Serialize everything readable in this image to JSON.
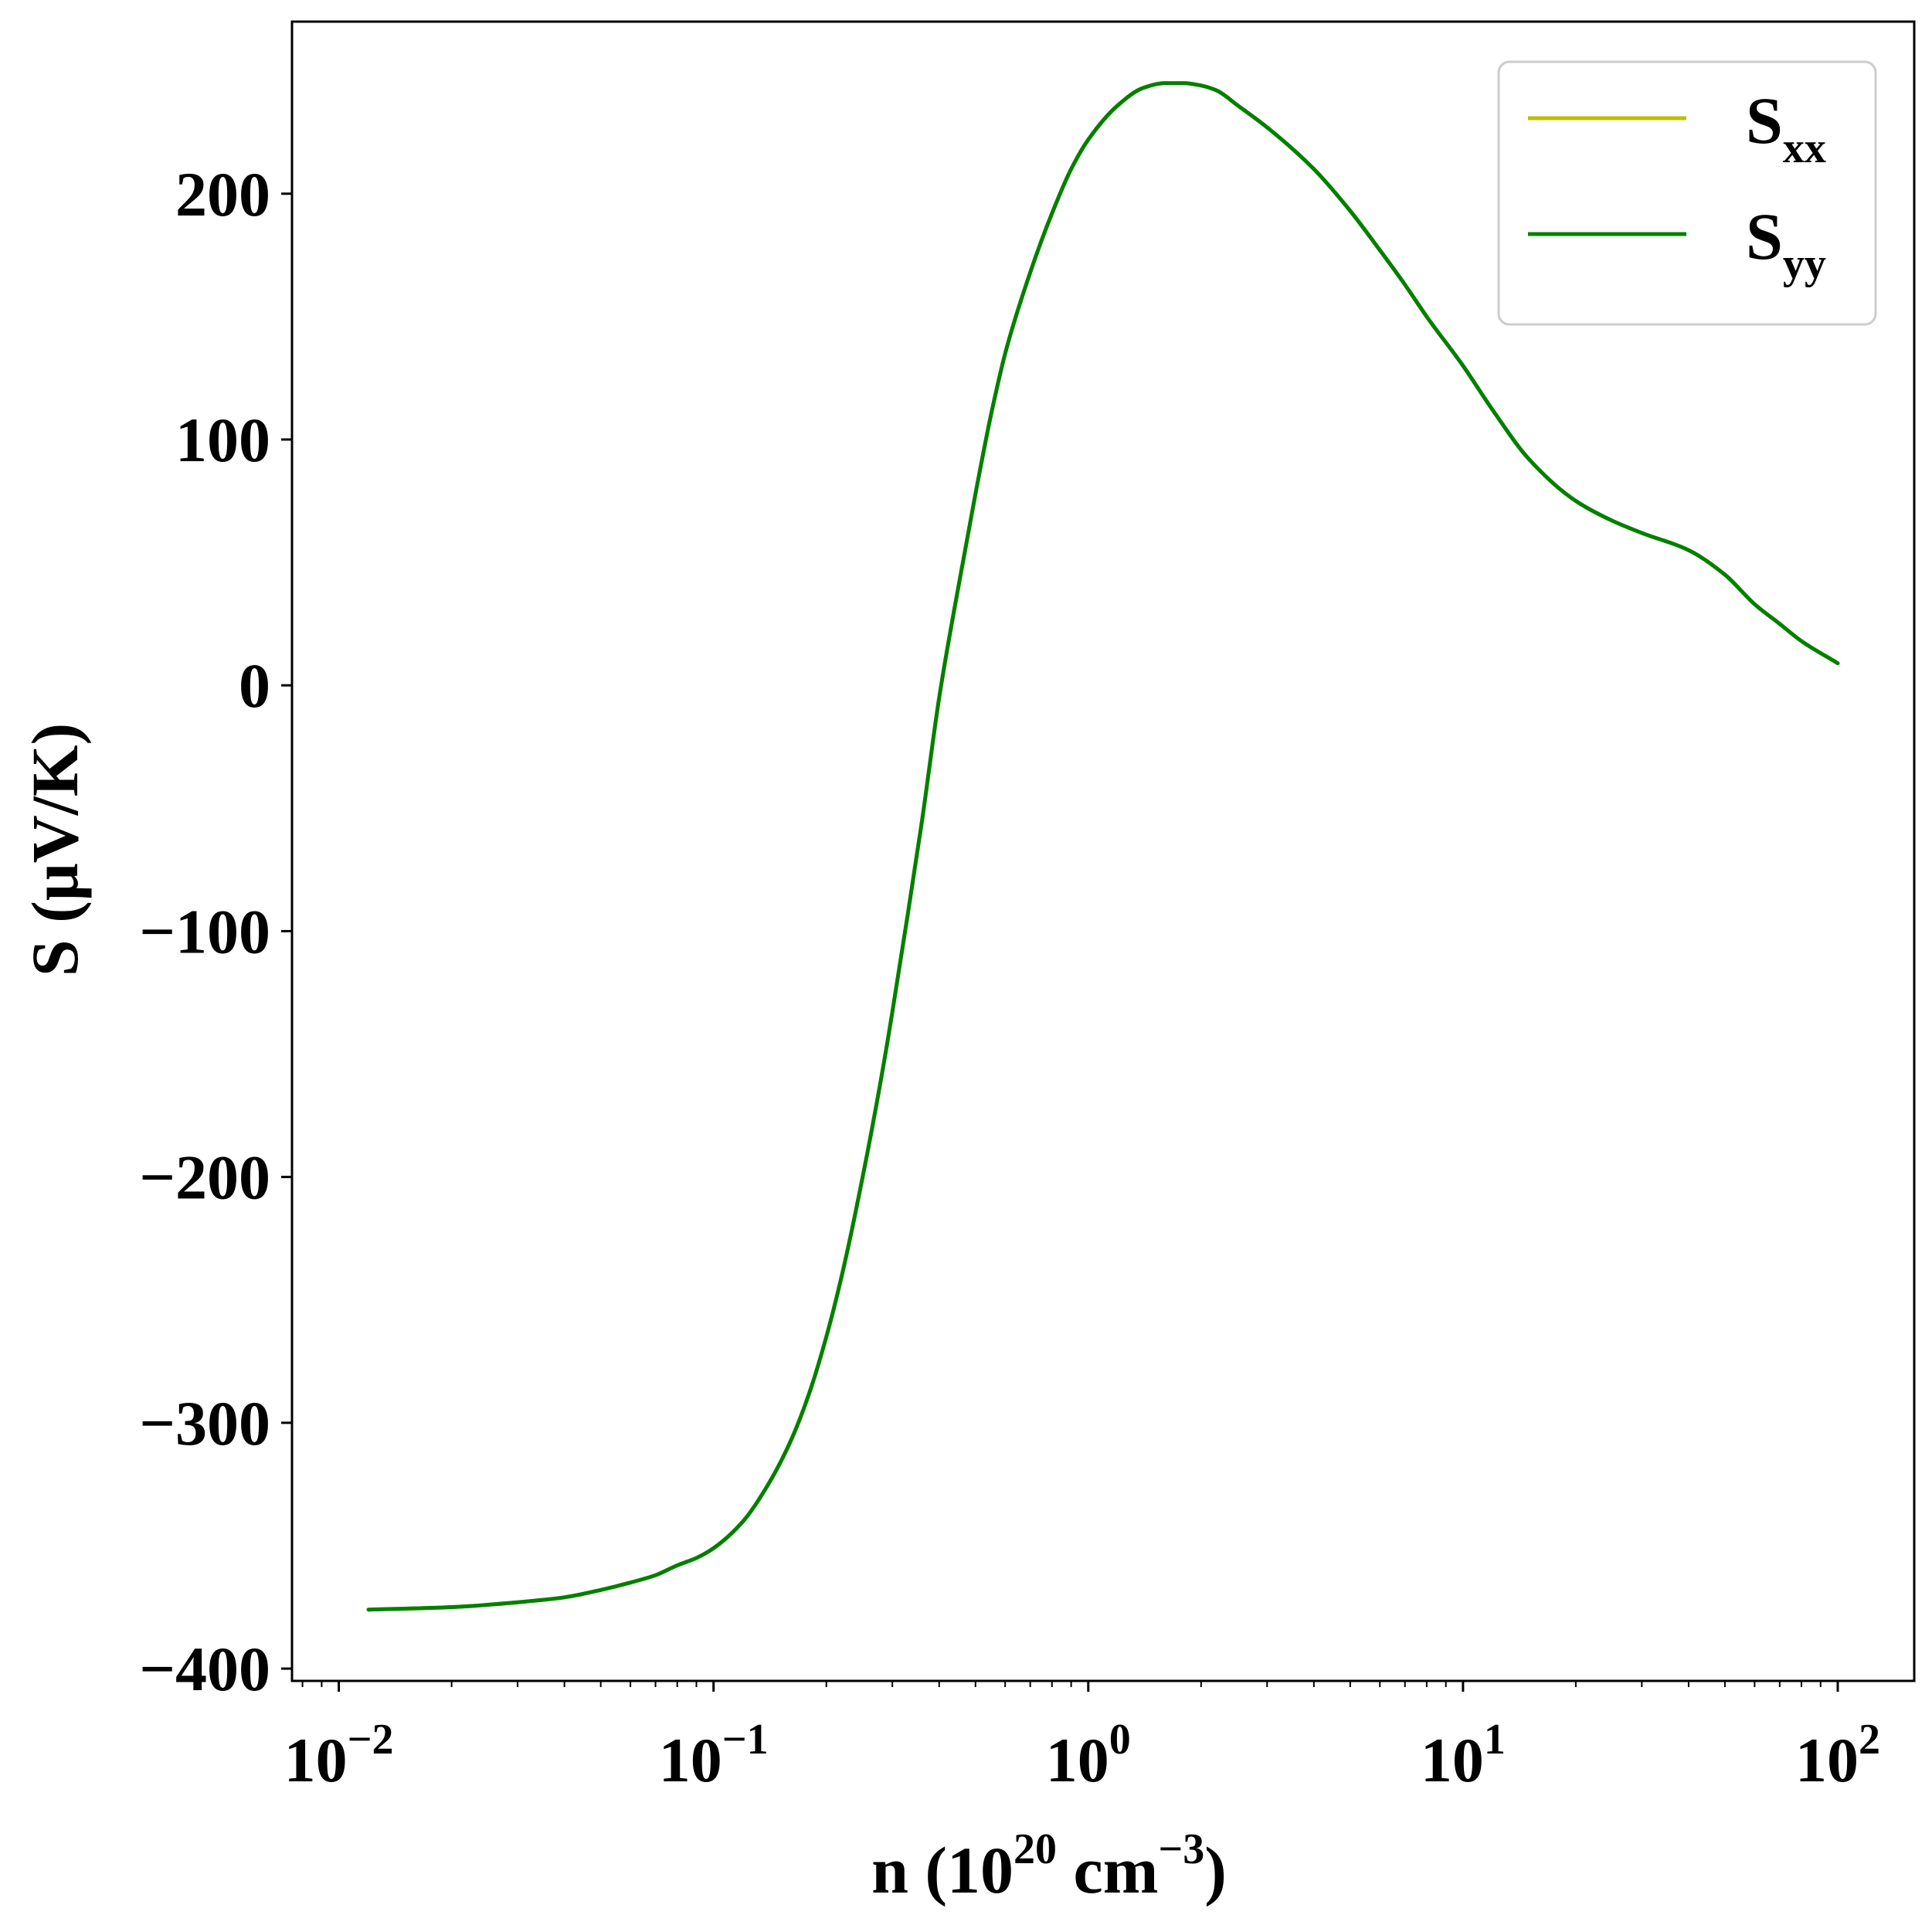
{
  "chart_data": {
    "type": "line",
    "xscale": "log",
    "xlim": [
      0.0075,
      160
    ],
    "ylim": [
      -405,
      270
    ],
    "grid": false,
    "legend_position": "top-right",
    "x_ticks": [
      {
        "value": 0.01,
        "base": "10",
        "exp": "−2"
      },
      {
        "value": 0.1,
        "base": "10",
        "exp": "−1"
      },
      {
        "value": 1,
        "base": "10",
        "exp": "0"
      },
      {
        "value": 10,
        "base": "10",
        "exp": "1"
      },
      {
        "value": 100,
        "base": "10",
        "exp": "2"
      }
    ],
    "y_ticks": [
      {
        "value": -400,
        "label": "−400"
      },
      {
        "value": -300,
        "label": "−300"
      },
      {
        "value": -200,
        "label": "−200"
      },
      {
        "value": -100,
        "label": "−100"
      },
      {
        "value": 0,
        "label": "0"
      },
      {
        "value": 100,
        "label": "100"
      },
      {
        "value": 200,
        "label": "200"
      }
    ],
    "xlabel": {
      "prefix": "n (10",
      "sup1": "20",
      "mid": " cm",
      "sup2": "−3",
      "suffix": ")"
    },
    "ylabel": "S (μV/K)",
    "series": [
      {
        "name": "S",
        "name_sub": "xx",
        "color": "#bfbf00",
        "x": [
          0.012,
          0.02,
          0.03,
          0.04,
          0.05,
          0.06,
          0.07,
          0.08,
          0.09,
          0.1,
          0.12,
          0.14,
          0.16,
          0.18,
          0.2,
          0.22,
          0.25,
          0.28,
          0.3,
          0.33,
          0.36,
          0.4,
          0.45,
          0.5,
          0.55,
          0.6,
          0.7,
          0.8,
          0.9,
          1.0,
          1.2,
          1.4,
          1.6,
          1.8,
          2.0,
          2.2,
          2.5,
          3,
          4,
          5,
          6,
          7,
          8,
          10,
          12,
          15,
          20,
          25,
          30,
          40,
          50,
          60,
          70,
          80,
          100
        ],
        "y": [
          -376,
          -375,
          -373,
          -371,
          -368,
          -365,
          -362,
          -358,
          -355,
          -351,
          -340,
          -325,
          -308,
          -288,
          -265,
          -240,
          -200,
          -160,
          -133,
          -93,
          -55,
          -5,
          40,
          78,
          110,
          135,
          168,
          192,
          210,
          222,
          236,
          243,
          245,
          245,
          244,
          242,
          236,
          227,
          210,
          193,
          177,
          163,
          150,
          130,
          112,
          92,
          75,
          67,
          62,
          55,
          45,
          33,
          25,
          18,
          9
        ]
      },
      {
        "name": "S",
        "name_sub": "yy",
        "color": "#008000",
        "x": [
          0.012,
          0.02,
          0.03,
          0.04,
          0.05,
          0.06,
          0.07,
          0.08,
          0.09,
          0.1,
          0.12,
          0.14,
          0.16,
          0.18,
          0.2,
          0.22,
          0.25,
          0.28,
          0.3,
          0.33,
          0.36,
          0.4,
          0.45,
          0.5,
          0.55,
          0.6,
          0.7,
          0.8,
          0.9,
          1.0,
          1.2,
          1.4,
          1.6,
          1.8,
          2.0,
          2.2,
          2.5,
          3,
          4,
          5,
          6,
          7,
          8,
          10,
          12,
          15,
          20,
          25,
          30,
          40,
          50,
          60,
          70,
          80,
          100
        ],
        "y": [
          -376,
          -375,
          -373,
          -371,
          -368,
          -365,
          -362,
          -358,
          -355,
          -351,
          -340,
          -325,
          -308,
          -288,
          -265,
          -240,
          -200,
          -160,
          -133,
          -93,
          -55,
          -5,
          40,
          78,
          110,
          135,
          168,
          192,
          210,
          222,
          236,
          243,
          245,
          245,
          244,
          242,
          236,
          227,
          210,
          193,
          177,
          163,
          150,
          130,
          112,
          92,
          75,
          67,
          62,
          55,
          45,
          33,
          25,
          18,
          9
        ]
      }
    ]
  }
}
